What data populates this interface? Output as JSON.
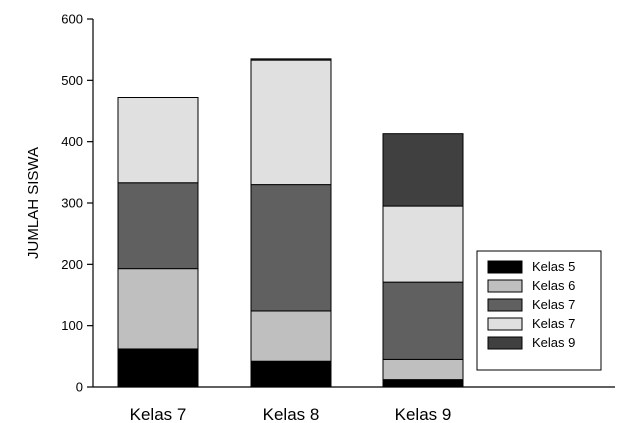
{
  "chart_data": {
    "type": "bar",
    "stacked": true,
    "title": "",
    "xlabel": "",
    "ylabel": "JUMLAH SISWA",
    "ylim": [
      0,
      600
    ],
    "yticks": [
      0,
      100,
      200,
      300,
      400,
      500,
      600
    ],
    "categories": [
      "Kelas 7",
      "Kelas 8",
      "Kelas 9"
    ],
    "series": [
      {
        "name": "Kelas 5",
        "color": "#000000",
        "values": [
          62,
          42,
          12
        ]
      },
      {
        "name": "Kelas 6",
        "color": "#bfbfbf",
        "values": [
          131,
          82,
          33
        ]
      },
      {
        "name": "Kelas 7",
        "color": "#606060",
        "values": [
          140,
          206,
          126
        ]
      },
      {
        "name": "Kelas 7",
        "color": "#e0e0e0",
        "values": [
          139,
          203,
          124
        ]
      },
      {
        "name": "Kelas 9",
        "color": "#404040",
        "values": [
          0,
          2,
          118
        ]
      }
    ],
    "legend": {
      "placement": "bottom-right"
    },
    "grid": false
  }
}
